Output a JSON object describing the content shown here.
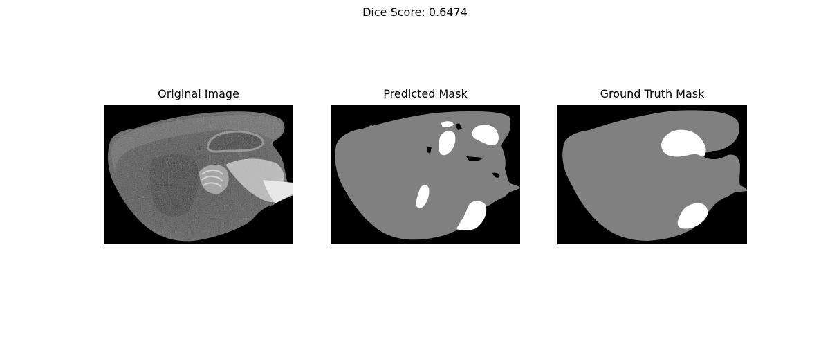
{
  "figure": {
    "suptitle": "Dice Score: 0.6474"
  },
  "panels": [
    {
      "title": "Original Image",
      "kind": "grayscale-mri-sagittal-slice"
    },
    {
      "title": "Predicted Mask",
      "kind": "segmentation-mask"
    },
    {
      "title": "Ground Truth Mask",
      "kind": "segmentation-mask"
    }
  ],
  "colors": {
    "background": "#000000",
    "tissue": "#808080",
    "region": "#ffffff"
  }
}
